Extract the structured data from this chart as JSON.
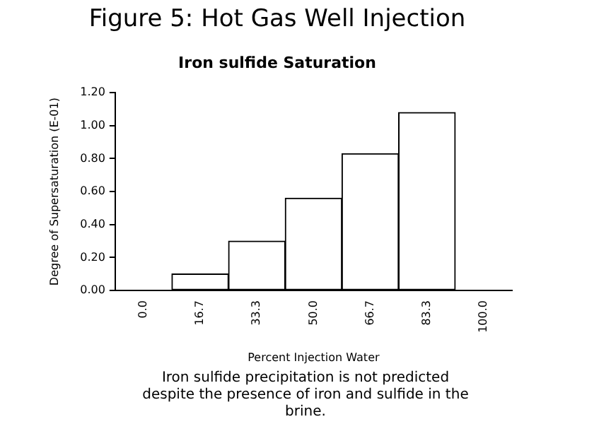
{
  "chart_data": {
    "type": "bar",
    "title": "Figure 5: Hot Gas Well Injection",
    "subtitle": "Iron sulfide Saturation",
    "xlabel": "Percent Injection Water",
    "ylabel": "Degree of Supersaturation (E-01)",
    "categories": [
      "0.0",
      "16.7",
      "33.3",
      "50.0",
      "66.7",
      "83.3",
      "100.0"
    ],
    "values": [
      0,
      0.1,
      0.3,
      0.56,
      0.83,
      1.08,
      0
    ],
    "color": "#ffffff",
    "ylim": [
      0,
      1.2
    ],
    "yticks": [
      {
        "value": 0,
        "label": "0.00"
      },
      {
        "value": 0.2,
        "label": "0.20"
      },
      {
        "value": 0.4,
        "label": "0.40"
      },
      {
        "value": 0.6,
        "label": "0.60"
      },
      {
        "value": 0.8,
        "label": "0.80"
      },
      {
        "value": 1.0,
        "label": "1.00"
      },
      {
        "value": 1.2,
        "label": "1.20"
      }
    ],
    "grid": false,
    "legend": false,
    "annotations": [
      "Iron sulfide precipitation is not predicted despite the presence of iron and sulfide in the brine."
    ]
  }
}
